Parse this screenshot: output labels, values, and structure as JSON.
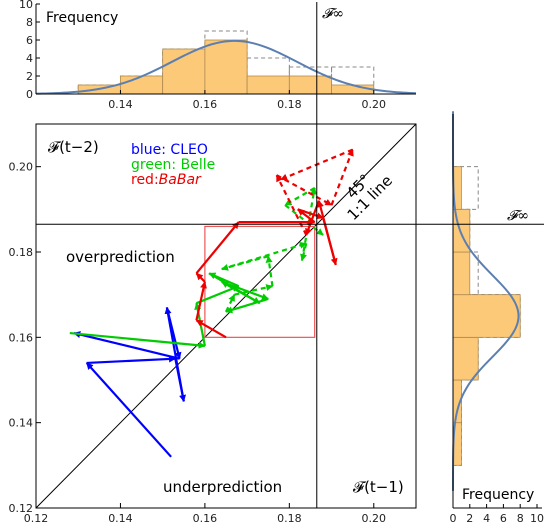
{
  "chart_data": [
    {
      "type": "line",
      "title": "",
      "xlabel": "𝓕(t−1)",
      "ylabel": "𝓕(t−2)",
      "xlim": [
        0.12,
        0.21
      ],
      "ylim": [
        0.12,
        0.21
      ],
      "x_ticks": [
        "0.12",
        "0.14",
        "0.16",
        "0.18",
        "0.20"
      ],
      "y_ticks": [
        "0.12",
        "0.14",
        "0.16",
        "0.18",
        "0.20"
      ],
      "legend": {
        "blue": "blue: CLEO",
        "green": "green: Belle",
        "red_prefix": "red:",
        "red_name": "BaBar"
      },
      "annotations": {
        "overprediction": "overprediction",
        "underprediction": "underprediction",
        "angle": "45°",
        "diagonal": "1:1 line",
        "f_infinity": "𝓕∞"
      },
      "f_infinity": 0.1865,
      "colors": {
        "CLEO": "#0000ff",
        "Belle": "#00cc00",
        "BaBar": "#ee0000",
        "box": "#ee5555"
      },
      "box": {
        "x": [
          0.16,
          0.186
        ],
        "y": [
          0.16,
          0.186
        ]
      },
      "series": [
        {
          "name": "CLEO",
          "style": "solid",
          "points": [
            [
              0.152,
              0.132
            ],
            [
              0.132,
              0.154
            ],
            [
              0.153,
              0.155
            ],
            [
              0.155,
              0.145
            ],
            [
              0.151,
              0.167
            ],
            [
              0.154,
              0.155
            ],
            [
              0.129,
              0.161
            ]
          ]
        },
        {
          "name": "Belle",
          "style": "solid",
          "points": [
            [
              0.128,
              0.161
            ],
            [
              0.16,
              0.158
            ],
            [
              0.158,
              0.168
            ],
            [
              0.168,
              0.172
            ],
            [
              0.161,
              0.175
            ],
            [
              0.173,
              0.168
            ],
            [
              0.164,
              0.173
            ],
            [
              0.175,
              0.169
            ],
            [
              0.165,
              0.166
            ]
          ]
        },
        {
          "name": "Belle",
          "style": "dashed",
          "points": [
            [
              0.165,
              0.166
            ],
            [
              0.167,
              0.17
            ],
            [
              0.176,
              0.172
            ],
            [
              0.175,
              0.179
            ],
            [
              0.164,
              0.176
            ],
            [
              0.184,
              0.182
            ],
            [
              0.183,
              0.178
            ],
            [
              0.186,
              0.195
            ],
            [
              0.179,
              0.191
            ],
            [
              0.188,
              0.184
            ]
          ]
        },
        {
          "name": "BaBar",
          "style": "solid",
          "points": [
            [
              0.165,
              0.16
            ],
            [
              0.158,
              0.164
            ],
            [
              0.16,
              0.173
            ],
            [
              0.158,
              0.175
            ],
            [
              0.168,
              0.187
            ],
            [
              0.186,
              0.187
            ],
            [
              0.182,
              0.19
            ],
            [
              0.188,
              0.188
            ],
            [
              0.191,
              0.177
            ],
            [
              0.187,
              0.192
            ],
            [
              0.184,
              0.184
            ]
          ]
        },
        {
          "name": "BaBar",
          "style": "dashed",
          "points": [
            [
              0.184,
              0.184
            ],
            [
              0.177,
              0.198
            ],
            [
              0.19,
              0.191
            ],
            [
              0.195,
              0.204
            ],
            [
              0.178,
              0.197
            ]
          ]
        }
      ]
    },
    {
      "type": "bar",
      "title": "",
      "ylabel": "Frequency",
      "xlim": [
        0.12,
        0.21
      ],
      "ylim": [
        0,
        10
      ],
      "x_ticks": [
        "0.14",
        "0.16",
        "0.18",
        "0.20"
      ],
      "y_ticks": [
        "0",
        "2",
        "4",
        "6",
        "8",
        "10"
      ],
      "bin_edges": [
        0.13,
        0.14,
        0.15,
        0.16,
        0.17,
        0.18,
        0.19,
        0.2
      ],
      "values": [
        1,
        2,
        5,
        6,
        2,
        2,
        1
      ],
      "dashed_values": [
        1,
        2,
        5,
        7,
        4,
        3,
        3
      ],
      "normal_fit": {
        "mean": 0.167,
        "sd": 0.0148,
        "peak": 5.9
      }
    },
    {
      "type": "bar",
      "title": "",
      "xlabel": "Frequency",
      "orientation": "horizontal",
      "ylim": [
        0.12,
        0.21
      ],
      "xlim": [
        0,
        10
      ],
      "x_ticks": [
        "0",
        "2",
        "4",
        "6",
        "8",
        "10"
      ],
      "bin_edges": [
        0.13,
        0.14,
        0.15,
        0.16,
        0.17,
        0.18,
        0.19,
        0.2
      ],
      "values": [
        1,
        1,
        3,
        8,
        2,
        2,
        1
      ],
      "dashed_values": [
        1,
        1,
        3,
        8,
        3,
        2,
        3
      ],
      "normal_fit": {
        "mean": 0.165,
        "sd": 0.0095,
        "peak": 7.8
      }
    }
  ]
}
